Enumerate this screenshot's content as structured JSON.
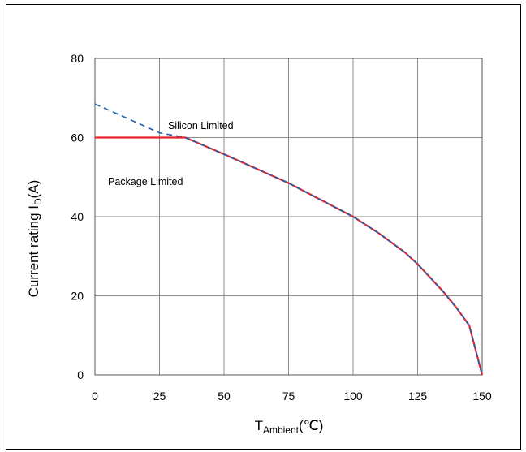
{
  "chart_data": {
    "type": "line",
    "xlabel": {
      "main": "T",
      "sub": "Ambient",
      "suffix": "(℃)"
    },
    "ylabel": {
      "main": "Current rating I",
      "sub": "D",
      "suffix": "(A)"
    },
    "xlim": [
      0,
      150
    ],
    "ylim": [
      0,
      80
    ],
    "xticks": [
      0,
      25,
      50,
      75,
      100,
      125,
      150
    ],
    "yticks": [
      0,
      20,
      40,
      60,
      80
    ],
    "grid": true,
    "annotations": [
      "Silicon Limited",
      "Package Limited"
    ],
    "series": [
      {
        "color": "#1f5fae",
        "style": "dashed-then-solid",
        "x": [
          0,
          25,
          35,
          50,
          75,
          100,
          110,
          120,
          125,
          130,
          135,
          140,
          145,
          150
        ],
        "y": [
          68.5,
          61.2,
          60,
          55.8,
          48.5,
          40,
          35.8,
          31,
          28,
          24.5,
          21,
          17,
          12.5,
          0
        ]
      },
      {
        "color": "#e8232a",
        "style": "solid",
        "x": [
          0,
          35,
          50,
          75,
          100,
          110,
          120,
          125,
          130,
          135,
          140,
          145,
          150
        ],
        "y": [
          60,
          60,
          55.8,
          48.5,
          40,
          35.8,
          31,
          28,
          24.5,
          21,
          17,
          12.5,
          0
        ]
      }
    ]
  }
}
